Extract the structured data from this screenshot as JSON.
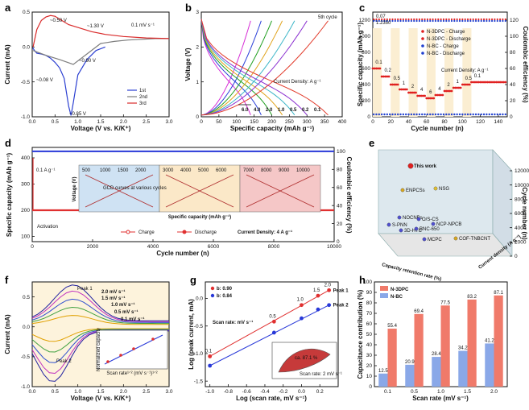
{
  "figure": {
    "panel_letters": [
      "a",
      "b",
      "c",
      "d",
      "e",
      "f",
      "g",
      "h"
    ]
  },
  "chart_data": [
    {
      "panel": "a",
      "type": "line",
      "xlabel": "Voltage (V vs. K/K⁺)",
      "ylabel": "Current (mA)",
      "xlim": [
        0,
        3.0
      ],
      "ylim": [
        -1.0,
        0.5
      ],
      "xticks": [
        "0.0",
        "0.5",
        "1.0",
        "1.5",
        "2.0",
        "2.5",
        "3.0"
      ],
      "yticks": [
        "-1.0",
        "-0.5",
        "0.0",
        "0.5"
      ],
      "annotations": [
        "~0.50 V",
        "~1.30 V",
        "~0.90 V",
        "~0.08 V",
        "~0.85 V",
        "0.1 mV s⁻¹"
      ],
      "series": [
        {
          "name": "1st",
          "color": "#2b3fd1",
          "x": [
            0.01,
            0.05,
            0.1,
            0.2,
            0.3,
            0.4,
            0.5,
            0.6,
            0.7,
            0.75,
            0.8,
            0.85,
            0.9,
            1.0,
            1.2,
            1.4,
            1.6
          ],
          "y": [
            -0.01,
            -0.05,
            -0.09,
            -0.1,
            -0.12,
            -0.16,
            -0.22,
            -0.3,
            -0.45,
            -0.65,
            -0.85,
            -0.98,
            -0.8,
            -0.4,
            -0.18,
            -0.05,
            0.0
          ]
        },
        {
          "name": "2nd",
          "color": "#7d7d7d",
          "x": [
            0.02,
            0.3,
            0.6,
            0.9,
            1.2,
            1.5,
            1.8,
            2.1,
            2.4,
            2.7,
            3.0
          ],
          "y": [
            -0.05,
            -0.12,
            -0.18,
            -0.25,
            -0.1,
            0.05,
            0.08,
            0.1,
            0.11,
            0.12,
            0.12
          ]
        },
        {
          "name": "3rd",
          "color": "#d92a2a",
          "x": [
            0.02,
            0.1,
            0.2,
            0.3,
            0.4,
            0.5,
            0.6,
            0.8,
            1.0,
            1.3,
            1.6,
            2.0,
            2.5,
            3.0
          ],
          "y": [
            0.0,
            0.25,
            0.38,
            0.43,
            0.45,
            0.44,
            0.4,
            0.32,
            0.28,
            0.22,
            0.18,
            0.15,
            0.13,
            0.12
          ]
        }
      ]
    },
    {
      "panel": "b",
      "type": "line",
      "xlabel": "Specific capacity (mAh g⁻¹)",
      "ylabel": "Voltage (V)",
      "xlim": [
        0,
        400
      ],
      "ylim": [
        0,
        3
      ],
      "xticks": [
        "0",
        "50",
        "100",
        "150",
        "200",
        "250",
        "300",
        "350",
        "400"
      ],
      "yticks": [
        "0",
        "1",
        "2",
        "3"
      ],
      "annotations": [
        "5th cycle",
        "Current Density: A g⁻¹"
      ],
      "series": [
        {
          "name": "6.0",
          "color": "#d62fd6",
          "capacity": 140
        },
        {
          "name": "4.0",
          "color": "#2a3fd8",
          "capacity": 170
        },
        {
          "name": "2.0",
          "color": "#22a022",
          "capacity": 200
        },
        {
          "name": "1.0",
          "color": "#e0a21a",
          "capacity": 230
        },
        {
          "name": "0.5",
          "color": "#3cb6c8",
          "capacity": 265
        },
        {
          "name": "0.2",
          "color": "#8a2fd0",
          "capacity": 300
        },
        {
          "name": "0.1",
          "color": "#e23a2a",
          "capacity": 360
        }
      ]
    },
    {
      "panel": "c",
      "type": "scatter",
      "xlabel": "Cycle number (n)",
      "ylabel": "Specific capacity (mAh g⁻¹)",
      "y2label": "Coulombic efficiency (%)",
      "xlim": [
        0,
        150
      ],
      "xticks": [
        "0",
        "20",
        "40",
        "60",
        "80",
        "100",
        "120",
        "140"
      ],
      "yticks": [
        "0",
        "200",
        "400",
        "600",
        "800",
        "1000",
        "1200"
      ],
      "y2ticks": [
        "0",
        "20",
        "40",
        "60",
        "80",
        "100",
        "120"
      ],
      "rate_labels": [
        "0.1",
        "0.2",
        "0.5",
        "1",
        "2",
        "4",
        "6",
        "4",
        "2",
        "1",
        "0.5",
        "0.1"
      ],
      "annotations": [
        "0.07",
        "1.2350",
        "Current Density: A g⁻¹"
      ],
      "legend": [
        "N-3DPC - Charge",
        "N-3DPC - Discharge",
        "N-BC - Charge",
        "N-BC - Discharge"
      ],
      "series": [
        {
          "name": "N-3DPC",
          "color": "#e02020",
          "segments": [
            [
              0,
              10,
              600
            ],
            [
              10,
              20,
              500
            ],
            [
              20,
              30,
              400
            ],
            [
              30,
              40,
              340
            ],
            [
              40,
              50,
              300
            ],
            [
              50,
              60,
              260
            ],
            [
              60,
              70,
              230
            ],
            [
              70,
              80,
              270
            ],
            [
              80,
              90,
              320
            ],
            [
              90,
              100,
              360
            ],
            [
              100,
              110,
              400
            ],
            [
              110,
              150,
              430
            ]
          ]
        },
        {
          "name": "N-BC",
          "color": "#2040d0",
          "value": 30
        }
      ]
    },
    {
      "panel": "d",
      "type": "scatter",
      "xlabel": "Cycle number (n)",
      "ylabel": "Specific capacity (mAh g⁻¹)",
      "y2label": "Coulombic efficiency (%)",
      "xlim": [
        0,
        10000
      ],
      "xticks": [
        "0",
        "2000",
        "4000",
        "6000",
        "8000",
        "10000"
      ],
      "yticks": [
        "100",
        "200",
        "300",
        "400"
      ],
      "y2ticks": [
        "0",
        "20",
        "40",
        "60",
        "80",
        "100"
      ],
      "annotations": [
        "0.1 A g⁻¹",
        "Activation",
        "Current Density: 4 A g⁻¹",
        "GCD curves at various cycles"
      ],
      "legend": [
        "Charge",
        "Discharge"
      ],
      "inset_cycle_groups": [
        {
          "cycles": [
            "500",
            "1000",
            "1500",
            "2000"
          ],
          "bg": "#cfe2f3"
        },
        {
          "cycles": [
            "3000",
            "4000",
            "5000",
            "6000"
          ],
          "bg": "#fbe8c8"
        },
        {
          "cycles": [
            "7000",
            "8000",
            "9000",
            "10000"
          ],
          "bg": "#f5c7c7"
        }
      ],
      "inset_xlabel": "Specific capacity (mAh g⁻¹)",
      "inset_ylabel": "Voltage (V)",
      "capacity_level": 200
    },
    {
      "panel": "e",
      "type": "scatter",
      "xlabel": "Capacity retention rate (%)",
      "ylabel": "Current density (A g⁻¹)",
      "zlabel": "Cycle number (n)",
      "zticks": [
        "0",
        "2000",
        "4000",
        "6000",
        "8000",
        "10000",
        "12000"
      ],
      "points": [
        "This work",
        "ENPCSs",
        "NSG",
        "NOCNBs",
        "O/S-CS",
        "NCP-NPCB",
        "S-PNN",
        "3D-HTC",
        "BNC-650",
        "MCPC",
        "COF-TNBCNT"
      ]
    },
    {
      "panel": "f",
      "type": "line",
      "xlabel": "Voltage (V vs. K/K⁺)",
      "ylabel": "Current (mA)",
      "xlim": [
        0,
        3.0
      ],
      "ylim": [
        -1.0,
        0.75
      ],
      "xticks": [
        "0.0",
        "0.5",
        "1.0",
        "1.5",
        "2.0",
        "2.5",
        "3.0"
      ],
      "yticks": [
        "-1.0",
        "-0.5",
        "0.0",
        "0.5"
      ],
      "annotations": [
        "Peak 1",
        "Peak 2",
        "2.0 mV s⁻¹",
        "1.5 mV s⁻¹",
        "1.0 mV s⁻¹",
        "0.5 mV s⁻¹",
        "0.1 mV s⁻¹"
      ],
      "inset_xlabel": "Scan rate¹ᐟ² (mV s⁻¹)¹ᐟ²",
      "inset_ylabel": "Normalized capacity",
      "inset_xticks": [
        "0.0",
        "0.5",
        "1.0",
        "1.5",
        "2.0",
        "2.5",
        "3.0",
        "3.5",
        "4.0"
      ],
      "series_scales": [
        0.25,
        0.45,
        0.65,
        0.85,
        1.0
      ]
    },
    {
      "panel": "g",
      "type": "scatter",
      "xlabel": "Log (scan rate, mV s⁻¹)",
      "ylabel": "Log (peak current, mA)",
      "xlim": [
        -1.0,
        0.4
      ],
      "xticks": [
        "-1.0",
        "-0.8",
        "-0.6",
        "-0.4",
        "-0.2",
        "0.0",
        "0.2"
      ],
      "yticks": [
        "-1.5",
        "-1.0",
        "-0.5",
        "0.0"
      ],
      "annotations": [
        "Scan rate: mV s⁻¹",
        "ca. 87.1 %",
        "Scan rate: 2 mV s⁻¹"
      ],
      "point_labels": [
        "0.1",
        "0.5",
        "1.0",
        "1.5",
        "2.0"
      ],
      "series": [
        {
          "name": "Peak 1",
          "color": "#e03030",
          "fit": "b: 0.90",
          "x": [
            -1.0,
            -0.3,
            0.0,
            0.18,
            0.3
          ],
          "y": [
            -1.05,
            -0.42,
            -0.12,
            0.05,
            0.15
          ]
        },
        {
          "name": "Peak 2",
          "color": "#2838d8",
          "fit": "b: 0.84",
          "x": [
            -1.0,
            -0.3,
            0.0,
            0.18,
            0.3
          ],
          "y": [
            -1.22,
            -0.62,
            -0.36,
            -0.2,
            -0.12
          ]
        }
      ]
    },
    {
      "panel": "h",
      "type": "bar",
      "xlabel": "Scan rate (mV s⁻¹)",
      "ylabel": "Capacitance contribution (%)",
      "ylim": [
        0,
        100
      ],
      "categories": [
        "0.1",
        "0.5",
        "1.0",
        "1.5",
        "2.0"
      ],
      "yticks": [
        "0",
        "10",
        "20",
        "30",
        "40",
        "50",
        "60",
        "70",
        "80",
        "90",
        "100"
      ],
      "series": [
        {
          "name": "N-3DPC",
          "color": "#f07a6a",
          "values": [
            55.4,
            69.4,
            77.5,
            83.2,
            87.1
          ]
        },
        {
          "name": "N-BC",
          "color": "#8aa8e8",
          "values": [
            12.5,
            20.9,
            28.4,
            34.2,
            41.2
          ]
        }
      ]
    }
  ]
}
